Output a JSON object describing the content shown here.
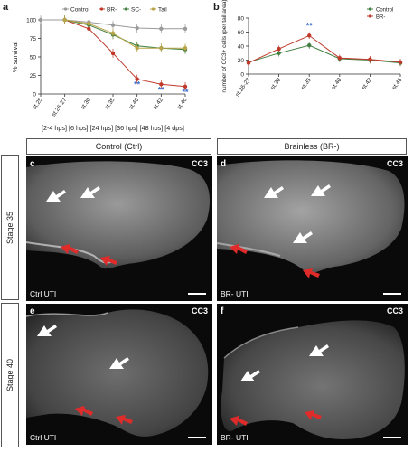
{
  "panels": {
    "a": {
      "letter": "a"
    },
    "b": {
      "letter": "b"
    }
  },
  "chart_data": [
    {
      "type": "line",
      "panel": "a",
      "ylabel": "% survival",
      "xlabel": "",
      "categories": [
        "st.25",
        "st.26-27",
        "st.30",
        "st.35",
        "st.40",
        "st.42",
        "st.46"
      ],
      "ylim": [
        0,
        100
      ],
      "yticks": [
        0,
        25,
        50,
        75,
        100
      ],
      "legend": {
        "placement": "top",
        "entries": [
          "Control",
          "BR-",
          "SC-",
          "Tail"
        ]
      },
      "series": [
        {
          "name": "Control",
          "color": "#9a9a9a",
          "values": [
            100,
            100,
            97,
            93,
            89,
            88,
            88
          ]
        },
        {
          "name": "BR-",
          "color": "#c0392b",
          "values": [
            null,
            100,
            88,
            55,
            20,
            13,
            10
          ]
        },
        {
          "name": "SC-",
          "color": "#3f7f3f",
          "values": [
            null,
            100,
            93,
            80,
            65,
            62,
            60
          ]
        },
        {
          "name": "Tail",
          "color": "#b8a54a",
          "values": [
            null,
            100,
            95,
            82,
            62,
            62,
            62
          ]
        }
      ],
      "significance": [
        {
          "category": "st.40",
          "label": "**"
        },
        {
          "category": "st.42",
          "label": "**"
        },
        {
          "category": "st.46",
          "label": "**"
        }
      ],
      "time_labels": "[2-4 hps] [6 hps] [24 hps] [36 hps] [48 hps] [4 dps]"
    },
    {
      "type": "line",
      "panel": "b",
      "ylabel": "number of CC3+ cells (per tail area)",
      "xlabel": "",
      "categories": [
        "st.26-27",
        "st.30",
        "st.35",
        "st.40",
        "st.42",
        "st.46"
      ],
      "ylim": [
        0,
        80
      ],
      "yticks": [
        0,
        20,
        40,
        60,
        80
      ],
      "legend": {
        "placement": "top-right",
        "entries": [
          "Control",
          "BR-"
        ]
      },
      "series": [
        {
          "name": "Control",
          "color": "#3f7f3f",
          "values": [
            17,
            30,
            41,
            22,
            20,
            16
          ]
        },
        {
          "name": "BR-",
          "color": "#c0392b",
          "values": [
            16,
            36,
            55,
            23,
            21,
            17
          ]
        }
      ],
      "significance": [
        {
          "category": "st.35",
          "label": "**"
        }
      ]
    }
  ],
  "columns": {
    "control": "Control (Ctrl)",
    "brainless": "Brainless (BR-)"
  },
  "rows": {
    "stage35": "Stage 35",
    "stage40": "Stage 40"
  },
  "images": [
    {
      "letter": "c",
      "stain": "CC3",
      "caption": "Ctrl UTI"
    },
    {
      "letter": "d",
      "stain": "CC3",
      "caption": "BR- UTI"
    },
    {
      "letter": "e",
      "stain": "CC3",
      "caption": "Ctrl UTI"
    },
    {
      "letter": "f",
      "stain": "CC3",
      "caption": "BR- UTI"
    }
  ],
  "colors": {
    "arrow_white": "#ffffff",
    "arrow_red": "#e02b2b",
    "significance": "#3a6ecf"
  }
}
